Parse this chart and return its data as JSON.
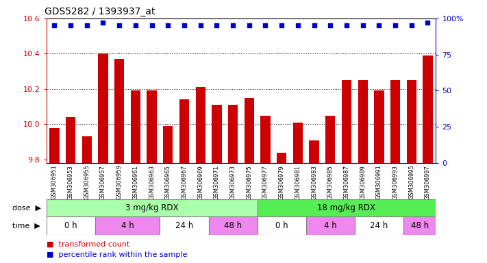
{
  "title": "GDS5282 / 1393937_at",
  "samples": [
    "GSM306951",
    "GSM306953",
    "GSM306955",
    "GSM306957",
    "GSM306959",
    "GSM306961",
    "GSM306963",
    "GSM306965",
    "GSM306967",
    "GSM306969",
    "GSM306971",
    "GSM306973",
    "GSM306975",
    "GSM306977",
    "GSM306979",
    "GSM306981",
    "GSM306983",
    "GSM306985",
    "GSM306987",
    "GSM306989",
    "GSM306991",
    "GSM306993",
    "GSM306995",
    "GSM306997"
  ],
  "bar_values": [
    9.98,
    10.04,
    9.93,
    10.4,
    10.37,
    10.19,
    10.19,
    9.99,
    10.14,
    10.21,
    10.11,
    10.11,
    10.15,
    10.05,
    9.84,
    10.01,
    9.91,
    10.05,
    10.25,
    10.25,
    10.19,
    10.25,
    10.25,
    10.39
  ],
  "percentile_values": [
    95,
    95,
    95,
    97,
    95,
    95,
    95,
    95,
    95,
    95,
    95,
    95,
    95,
    95,
    95,
    95,
    95,
    95,
    95,
    95,
    95,
    95,
    95,
    97
  ],
  "ylim_left": [
    9.78,
    10.6
  ],
  "ylim_right": [
    0,
    100
  ],
  "yticks_left": [
    9.8,
    10.0,
    10.2,
    10.4,
    10.6
  ],
  "yticks_right": [
    0,
    25,
    50,
    75,
    100
  ],
  "ytick_labels_right": [
    "0",
    "25",
    "50",
    "75",
    "100%"
  ],
  "bar_color": "#cc0000",
  "percentile_color": "#0000cc",
  "dose_groups": [
    {
      "label": "3 mg/kg RDX",
      "start": 0,
      "end": 13,
      "color": "#aaffaa"
    },
    {
      "label": "18 mg/kg RDX",
      "start": 13,
      "end": 24,
      "color": "#55ee55"
    }
  ],
  "time_groups": [
    {
      "label": "0 h",
      "start": 0,
      "end": 3,
      "color": "#ffffff"
    },
    {
      "label": "4 h",
      "start": 3,
      "end": 7,
      "color": "#ee88ee"
    },
    {
      "label": "24 h",
      "start": 7,
      "end": 10,
      "color": "#ffffff"
    },
    {
      "label": "48 h",
      "start": 10,
      "end": 13,
      "color": "#ee88ee"
    },
    {
      "label": "0 h",
      "start": 13,
      "end": 16,
      "color": "#ffffff"
    },
    {
      "label": "4 h",
      "start": 16,
      "end": 19,
      "color": "#ee88ee"
    },
    {
      "label": "24 h",
      "start": 19,
      "end": 22,
      "color": "#ffffff"
    },
    {
      "label": "48 h",
      "start": 22,
      "end": 24,
      "color": "#ee88ee"
    }
  ],
  "legend_items": [
    {
      "label": "transformed count",
      "color": "#cc0000"
    },
    {
      "label": "percentile rank within the sample",
      "color": "#0000cc"
    }
  ],
  "background_color": "#ffffff",
  "xtick_bg_color": "#d8d8d8",
  "grid_color": "#000000",
  "dose_label_text": "dose",
  "time_label_text": "time"
}
